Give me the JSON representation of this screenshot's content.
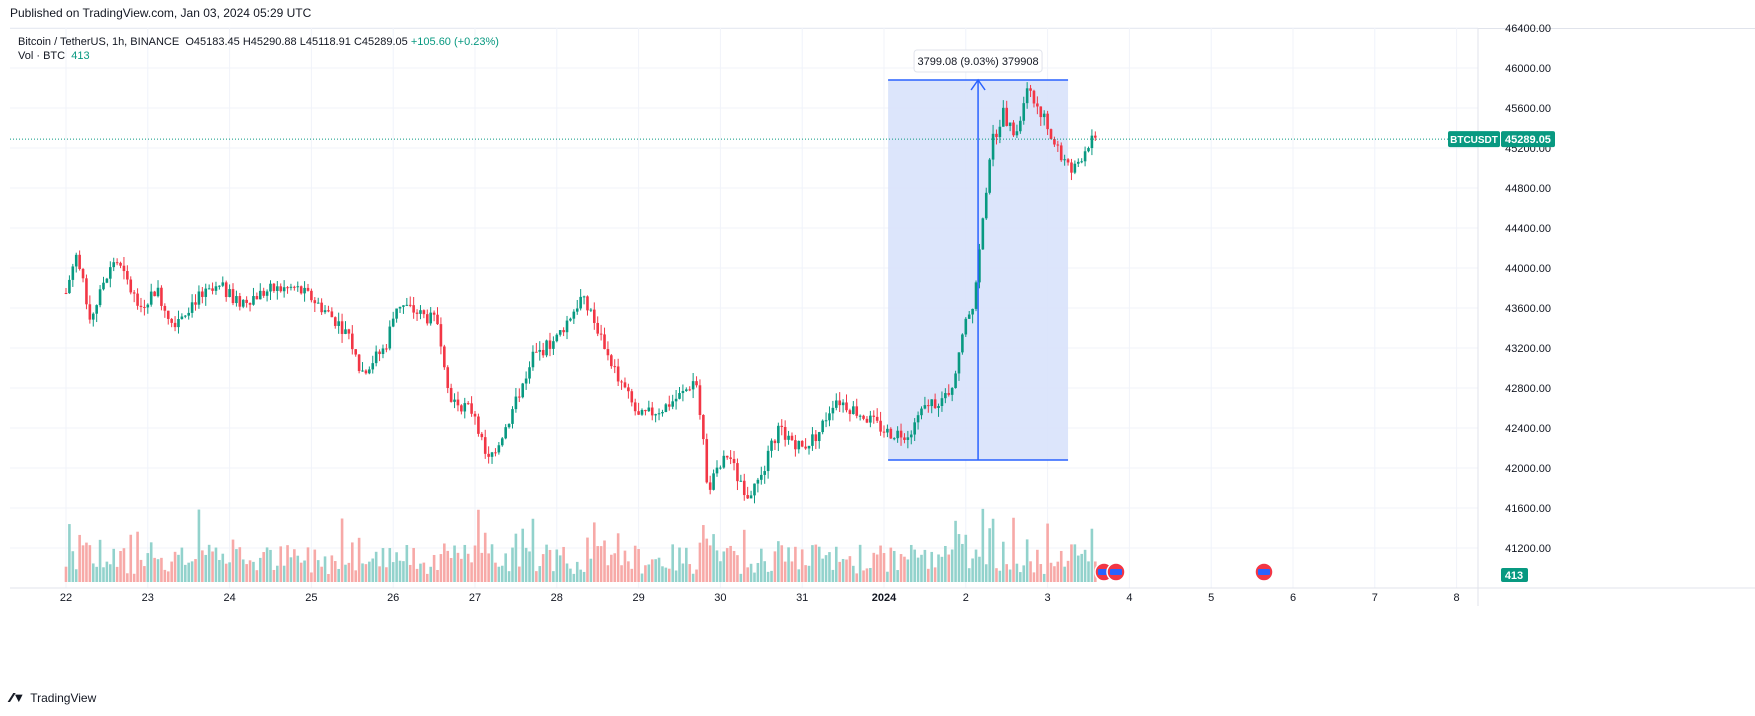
{
  "header": {
    "published": "Published on TradingView.com, Jan 03, 2024 05:29 UTC"
  },
  "legend": {
    "symbol": "Bitcoin / TetherUS, 1h, BINANCE",
    "open": "O45183.45",
    "high": "H45290.88",
    "low": "L45118.91",
    "close": "C45289.05",
    "change": "+105.60 (+0.23%)",
    "volume_label": "Vol · BTC",
    "volume_value": "413"
  },
  "measure": {
    "label": "3799.08 (9.03%) 379908"
  },
  "price_tags": {
    "symbol": "BTCUSDT",
    "price": "45289.05",
    "volume": "413"
  },
  "footer": {
    "brand": "TradingView"
  },
  "colors": {
    "up": "#089981",
    "down": "#f23645",
    "up_vol": "#92d2cc",
    "down_vol": "#f7a9a7",
    "measure_fill": "#d8e2fb",
    "measure_line": "#2962ff",
    "grid": "#f0f3fa"
  },
  "chart_data": {
    "type": "candlestick",
    "title": "Bitcoin / TetherUS, 1h, BINANCE",
    "ylim": [
      40920,
      46480
    ],
    "y_ticks": [
      46400,
      46000,
      45600,
      45200,
      44800,
      44400,
      44000,
      43600,
      43200,
      42800,
      42400,
      42000,
      41600,
      41200
    ],
    "y_tick_labels": [
      "46400.00",
      "46000.00",
      "45600.00",
      "45200.00",
      "44800.00",
      "44400.00",
      "44000.00",
      "43600.00",
      "43200.00",
      "42800.00",
      "42400.00",
      "42000.00",
      "41600.00",
      "41200.00"
    ],
    "x_ticks": [
      "22",
      "23",
      "24",
      "25",
      "26",
      "27",
      "28",
      "29",
      "30",
      "31",
      "2024",
      "2",
      "3",
      "4",
      "5",
      "6",
      "7",
      "8"
    ],
    "current_price": 45289.05,
    "measure": {
      "from_price": 42080,
      "to_price": 45880,
      "from_day": 10.05,
      "to_day": 12.25
    },
    "anchors": [
      {
        "day": 0.0,
        "price": 43750
      },
      {
        "day": 0.12,
        "price": 44150
      },
      {
        "day": 0.3,
        "price": 43500
      },
      {
        "day": 0.6,
        "price": 44100
      },
      {
        "day": 0.9,
        "price": 43600
      },
      {
        "day": 1.1,
        "price": 43800
      },
      {
        "day": 1.3,
        "price": 43450
      },
      {
        "day": 1.6,
        "price": 43700
      },
      {
        "day": 1.9,
        "price": 43800
      },
      {
        "day": 2.1,
        "price": 43650
      },
      {
        "day": 2.5,
        "price": 43780
      },
      {
        "day": 2.8,
        "price": 43800
      },
      {
        "day": 3.0,
        "price": 43700
      },
      {
        "day": 3.2,
        "price": 43550
      },
      {
        "day": 3.45,
        "price": 43350
      },
      {
        "day": 3.6,
        "price": 42950
      },
      {
        "day": 3.9,
        "price": 43200
      },
      {
        "day": 4.05,
        "price": 43650
      },
      {
        "day": 4.3,
        "price": 43550
      },
      {
        "day": 4.55,
        "price": 43450
      },
      {
        "day": 4.7,
        "price": 42700
      },
      {
        "day": 5.0,
        "price": 42550
      },
      {
        "day": 5.15,
        "price": 42050
      },
      {
        "day": 5.4,
        "price": 42450
      },
      {
        "day": 5.7,
        "price": 43100
      },
      {
        "day": 6.0,
        "price": 43300
      },
      {
        "day": 6.3,
        "price": 43700
      },
      {
        "day": 6.5,
        "price": 43400
      },
      {
        "day": 6.7,
        "price": 43000
      },
      {
        "day": 7.0,
        "price": 42500
      },
      {
        "day": 7.3,
        "price": 42600
      },
      {
        "day": 7.55,
        "price": 42750
      },
      {
        "day": 7.7,
        "price": 42900
      },
      {
        "day": 7.85,
        "price": 41800
      },
      {
        "day": 8.1,
        "price": 42150
      },
      {
        "day": 8.3,
        "price": 41700
      },
      {
        "day": 8.5,
        "price": 41900
      },
      {
        "day": 8.7,
        "price": 42400
      },
      {
        "day": 9.0,
        "price": 42200
      },
      {
        "day": 9.2,
        "price": 42350
      },
      {
        "day": 9.4,
        "price": 42700
      },
      {
        "day": 9.7,
        "price": 42550
      },
      {
        "day": 10.05,
        "price": 42350
      },
      {
        "day": 10.3,
        "price": 42350
      },
      {
        "day": 10.55,
        "price": 42650
      },
      {
        "day": 10.8,
        "price": 42700
      },
      {
        "day": 10.95,
        "price": 43300
      },
      {
        "day": 11.1,
        "price": 43700
      },
      {
        "day": 11.2,
        "price": 44400
      },
      {
        "day": 11.3,
        "price": 45200
      },
      {
        "day": 11.45,
        "price": 45550
      },
      {
        "day": 11.6,
        "price": 45300
      },
      {
        "day": 11.75,
        "price": 45750
      },
      {
        "day": 11.9,
        "price": 45600
      },
      {
        "day": 12.1,
        "price": 45200
      },
      {
        "day": 12.3,
        "price": 44950
      },
      {
        "day": 12.5,
        "price": 45250
      },
      {
        "day": 12.6,
        "price": 45290
      }
    ]
  }
}
